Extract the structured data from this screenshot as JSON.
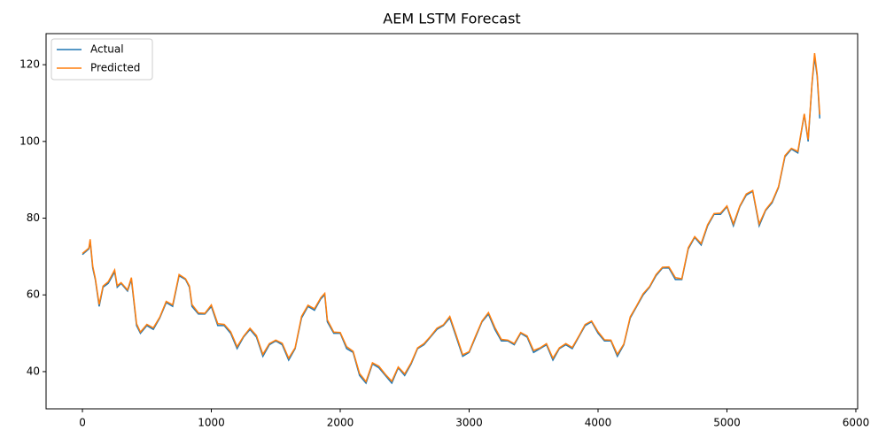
{
  "chart_data": {
    "type": "line",
    "title": "AEM LSTM Forecast",
    "x": [
      0,
      50,
      60,
      80,
      100,
      130,
      160,
      200,
      250,
      270,
      300,
      350,
      380,
      420,
      450,
      500,
      550,
      600,
      650,
      700,
      750,
      800,
      830,
      850,
      900,
      950,
      1000,
      1050,
      1100,
      1150,
      1200,
      1250,
      1300,
      1350,
      1400,
      1450,
      1500,
      1550,
      1600,
      1650,
      1700,
      1750,
      1800,
      1850,
      1880,
      1900,
      1950,
      2000,
      2050,
      2100,
      2150,
      2200,
      2250,
      2300,
      2350,
      2400,
      2450,
      2500,
      2550,
      2600,
      2650,
      2700,
      2750,
      2800,
      2850,
      2900,
      2950,
      3000,
      3050,
      3100,
      3150,
      3200,
      3250,
      3300,
      3350,
      3400,
      3450,
      3500,
      3550,
      3600,
      3650,
      3700,
      3750,
      3800,
      3850,
      3900,
      3950,
      4000,
      4050,
      4100,
      4150,
      4200,
      4250,
      4300,
      4350,
      4400,
      4450,
      4500,
      4550,
      4600,
      4650,
      4700,
      4750,
      4800,
      4850,
      4900,
      4950,
      5000,
      5050,
      5100,
      5150,
      5200,
      5250,
      5300,
      5350,
      5400,
      5450,
      5500,
      5550,
      5600,
      5630,
      5660,
      5680,
      5700,
      5720
    ],
    "series": [
      {
        "name": "Actual",
        "color": "#1f77b4",
        "values": [
          70.5,
          72,
          74,
          67,
          64,
          57,
          62,
          63,
          66,
          62,
          63,
          61,
          64,
          52,
          50,
          52,
          51,
          54,
          58,
          57,
          65,
          64,
          62,
          57,
          55,
          55,
          57,
          52,
          52,
          50,
          46,
          49,
          51,
          49,
          44,
          47,
          48,
          47,
          43,
          46,
          54,
          57,
          56,
          59,
          60,
          53,
          50,
          50,
          46,
          45,
          39,
          37,
          42,
          41,
          39,
          37,
          41,
          39,
          42,
          46,
          47,
          49,
          51,
          52,
          54,
          49,
          44,
          45,
          49,
          53,
          55,
          51,
          48,
          48,
          47,
          50,
          49,
          45,
          46,
          47,
          43,
          46,
          47,
          46,
          49,
          52,
          53,
          50,
          48,
          48,
          44,
          47,
          54,
          57,
          60,
          62,
          65,
          67,
          67,
          64,
          64,
          72,
          75,
          73,
          78,
          81,
          81,
          83,
          78,
          83,
          86,
          87,
          78,
          82,
          84,
          88,
          96,
          98,
          97,
          107,
          100,
          115,
          122,
          117,
          106
        ]
      },
      {
        "name": "Predicted",
        "color": "#ff7f0e",
        "values": [
          70.8,
          72.2,
          74.5,
          67.5,
          64.3,
          57.5,
          62.3,
          63.4,
          66.5,
          62.4,
          63.2,
          61.3,
          64.5,
          52.5,
          50.3,
          52.3,
          51.4,
          54.2,
          58.3,
          57.4,
          65.3,
          64.2,
          62.3,
          57.5,
          55.3,
          55.2,
          57.4,
          52.5,
          52.3,
          50.4,
          46.5,
          49.2,
          51.3,
          49.4,
          44.5,
          47.3,
          48.2,
          47.4,
          43.5,
          46.2,
          54.4,
          57.3,
          56.4,
          59.3,
          60.4,
          53.5,
          50.3,
          50.2,
          46.5,
          45.3,
          39.5,
          37.4,
          42.3,
          41.4,
          39.3,
          37.5,
          41.2,
          39.4,
          42.3,
          46.2,
          47.3,
          49.2,
          51.3,
          52.2,
          54.4,
          49.5,
          44.4,
          45.2,
          49.3,
          53.2,
          55.4,
          51.5,
          48.4,
          48.2,
          47.3,
          50.2,
          49.3,
          45.5,
          46.2,
          47.3,
          43.5,
          46.2,
          47.3,
          46.3,
          49.2,
          52.3,
          53.2,
          50.4,
          48.3,
          48.2,
          44.5,
          47.2,
          54.3,
          57.2,
          60.3,
          62.2,
          65.3,
          67.2,
          67.3,
          64.5,
          64.2,
          72.3,
          75.2,
          73.4,
          78.3,
          81.2,
          81.3,
          83.2,
          78.5,
          83.2,
          86.3,
          87.2,
          78.5,
          82.2,
          84.3,
          88.2,
          96.3,
          98.2,
          97.4,
          107.2,
          100.5,
          115.3,
          123,
          117.5,
          107
        ]
      }
    ],
    "xlim": [
      -282,
      6014
    ],
    "ylim": [
      30.3,
      128.1
    ],
    "xticks": [
      0,
      1000,
      2000,
      3000,
      4000,
      5000,
      6000
    ],
    "yticks": [
      40,
      60,
      80,
      100,
      120
    ],
    "legend": "upper left"
  }
}
